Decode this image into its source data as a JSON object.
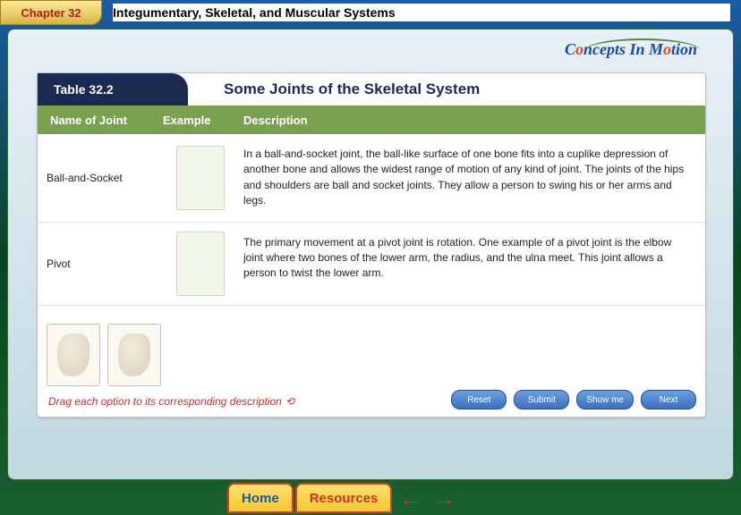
{
  "chapter": {
    "tab": "Chapter 32",
    "title": "Integumentary, Skeletal, and Muscular Systems"
  },
  "logo": {
    "full": "Concepts In Motion"
  },
  "table": {
    "label": "Table 32.2",
    "title": "Some Joints of the Skeletal System",
    "columns": {
      "name": "Name of Joint",
      "example": "Example",
      "description": "Description"
    },
    "rows": [
      {
        "name": "Ball-and-Socket",
        "desc": "In a ball-and-socket joint, the ball-like surface of one bone fits into a cuplike depression of another bone and allows the widest range of motion of any kind of joint. The joints of the hips and shoulders are ball and socket joints. They allow a person to swing his or her arms and legs."
      },
      {
        "name": "Pivot",
        "desc": "The primary movement at a pivot joint is rotation. One example of a pivot joint is the elbow joint where two bones of the lower arm, the radius, and the ulna meet. This joint allows a person to twist the lower arm."
      }
    ]
  },
  "instruction": "Drag each option to its corresponding description",
  "buttons": {
    "reset": "Reset",
    "submit": "Submit",
    "showme": "Show me",
    "next": "Next"
  },
  "nav": {
    "home": "Home",
    "resources": "Resources",
    "prev": "←",
    "fwd": "→"
  },
  "colors": {
    "tab_bg": "#ebd070",
    "tab_text": "#b02020",
    "header_bg": "#7aa050",
    "table_label_bg": "#1a2a50",
    "blue_btn": "#3a70c0",
    "instr": "#c03030",
    "bottom_tab_border": "#d84020"
  }
}
